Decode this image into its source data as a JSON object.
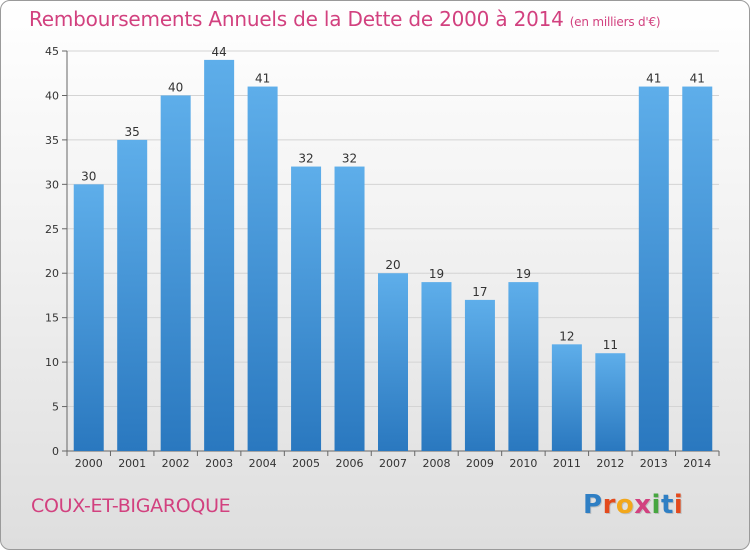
{
  "chart_data": {
    "type": "bar",
    "title": "Remboursements Annuels de la Dette de 2000 à 2014",
    "unit": "(en milliers d'€)",
    "categories": [
      "2000",
      "2001",
      "2002",
      "2003",
      "2004",
      "2005",
      "2006",
      "2007",
      "2008",
      "2009",
      "2010",
      "2011",
      "2012",
      "2013",
      "2014"
    ],
    "values": [
      30,
      35,
      40,
      44,
      41,
      32,
      32,
      20,
      19,
      17,
      19,
      12,
      11,
      41,
      41
    ],
    "ylim": [
      0,
      45
    ],
    "yticks": [
      0,
      5,
      10,
      15,
      20,
      25,
      30,
      35,
      40,
      45
    ],
    "grid": true,
    "bar_color": "#4a9ee0"
  },
  "footer": {
    "place": "COUX-ET-BIGAROQUE",
    "logo": [
      "P",
      "r",
      "o",
      "x",
      "i",
      "t",
      "i"
    ]
  }
}
